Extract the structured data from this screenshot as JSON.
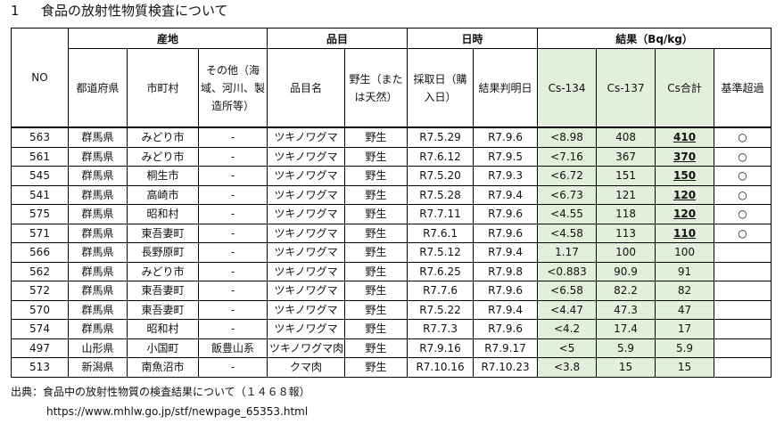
{
  "section": {
    "number": "1",
    "title": "食品の放射性物質検査について"
  },
  "headers": {
    "no": "NO",
    "origin": "産地",
    "item": "品目",
    "dates": "日時",
    "result": "結果（Bq/kg）",
    "prefecture": "都道府県",
    "municipality": "市町村",
    "other": "その他（海域、河川、製造所等）",
    "item_name": "品目名",
    "wild": "野生（または天然）",
    "sampling_date": "採取日（購入日）",
    "result_date": "結果判明日",
    "cs134": "Cs-134",
    "cs137": "Cs-137",
    "cs_total": "Cs合計",
    "exceed": "基準超過"
  },
  "rows": [
    {
      "no": "563",
      "pref": "群馬県",
      "city": "みどり市",
      "other": "-",
      "item": "ツキノワグマ",
      "wild": "野生",
      "sampled": "R7.5.29",
      "determined": "R7.9.6",
      "cs134": "<8.98",
      "cs137": "408",
      "total": "410",
      "over": "○"
    },
    {
      "no": "561",
      "pref": "群馬県",
      "city": "みどり市",
      "other": "-",
      "item": "ツキノワグマ",
      "wild": "野生",
      "sampled": "R7.6.12",
      "determined": "R7.9.5",
      "cs134": "<7.16",
      "cs137": "367",
      "total": "370",
      "over": "○"
    },
    {
      "no": "545",
      "pref": "群馬県",
      "city": "桐生市",
      "other": "-",
      "item": "ツキノワグマ",
      "wild": "野生",
      "sampled": "R7.5.20",
      "determined": "R7.9.3",
      "cs134": "<6.72",
      "cs137": "151",
      "total": "150",
      "over": "○"
    },
    {
      "no": "541",
      "pref": "群馬県",
      "city": "高崎市",
      "other": "-",
      "item": "ツキノワグマ",
      "wild": "野生",
      "sampled": "R7.5.28",
      "determined": "R7.9.4",
      "cs134": "<6.73",
      "cs137": "121",
      "total": "120",
      "over": "○"
    },
    {
      "no": "575",
      "pref": "群馬県",
      "city": "昭和村",
      "other": "-",
      "item": "ツキノワグマ",
      "wild": "野生",
      "sampled": "R7.7.11",
      "determined": "R7.9.6",
      "cs134": "<4.55",
      "cs137": "118",
      "total": "120",
      "over": "○"
    },
    {
      "no": "571",
      "pref": "群馬県",
      "city": "東吾妻町",
      "other": "-",
      "item": "ツキノワグマ",
      "wild": "野生",
      "sampled": "R7.6.1",
      "determined": "R7.9.6",
      "cs134": "<4.58",
      "cs137": "113",
      "total": "110",
      "over": "○"
    },
    {
      "no": "566",
      "pref": "群馬県",
      "city": "長野原町",
      "other": "-",
      "item": "ツキノワグマ",
      "wild": "野生",
      "sampled": "R7.5.12",
      "determined": "R7.9.4",
      "cs134": "1.17",
      "cs137": "100",
      "total": "100",
      "over": ""
    },
    {
      "no": "562",
      "pref": "群馬県",
      "city": "みどり市",
      "other": "-",
      "item": "ツキノワグマ",
      "wild": "野生",
      "sampled": "R7.6.25",
      "determined": "R7.9.8",
      "cs134": "<0.883",
      "cs137": "90.9",
      "total": "91",
      "over": ""
    },
    {
      "no": "572",
      "pref": "群馬県",
      "city": "東吾妻町",
      "other": "-",
      "item": "ツキノワグマ",
      "wild": "野生",
      "sampled": "R7.7.6",
      "determined": "R7.9.6",
      "cs134": "<6.58",
      "cs137": "82.2",
      "total": "82",
      "over": ""
    },
    {
      "no": "570",
      "pref": "群馬県",
      "city": "東吾妻町",
      "other": "-",
      "item": "ツキノワグマ",
      "wild": "野生",
      "sampled": "R7.5.22",
      "determined": "R7.9.4",
      "cs134": "<4.47",
      "cs137": "47.3",
      "total": "47",
      "over": ""
    },
    {
      "no": "574",
      "pref": "群馬県",
      "city": "昭和村",
      "other": "-",
      "item": "ツキノワグマ",
      "wild": "野生",
      "sampled": "R7.7.3",
      "determined": "R7.9.6",
      "cs134": "<4.2",
      "cs137": "17.4",
      "total": "17",
      "over": ""
    },
    {
      "no": "497",
      "pref": "山形県",
      "city": "小国町",
      "other": "飯豊山系",
      "item": "ツキノワグマ肉",
      "wild": "野生",
      "sampled": "R7.9.16",
      "determined": "R7.9.17",
      "cs134": "<5",
      "cs137": "5.9",
      "total": "5.9",
      "over": ""
    },
    {
      "no": "513",
      "pref": "新潟県",
      "city": "南魚沼市",
      "other": "-",
      "item": "クマ肉",
      "wild": "野生",
      "sampled": "R7.10.16",
      "determined": "R7.10.23",
      "cs134": "<3.8",
      "cs137": "15",
      "total": "15",
      "over": ""
    }
  ],
  "exceed_rows": 6,
  "footnote": {
    "source": "出典：食品中の放射性物質の検査結果について（１４６８報）",
    "url": "https://www.mhlw.go.jp/stf/newpage_65353.html"
  },
  "colors": {
    "result_bg": "#e2efda",
    "border": "#000000"
  }
}
